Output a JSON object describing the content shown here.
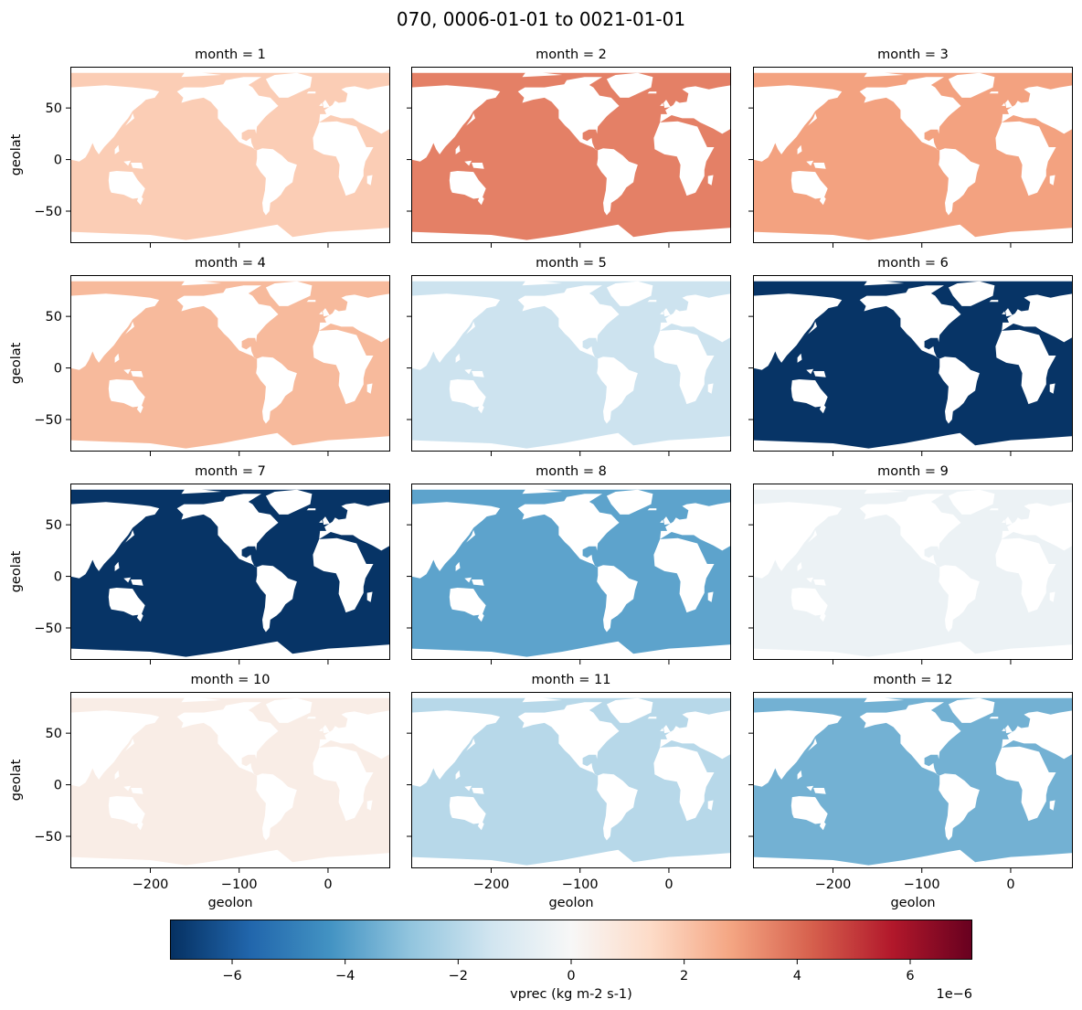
{
  "chart_data": {
    "type": "heatmap",
    "title": "070, 0006-01-01 to 0021-01-01",
    "xlabel": "geolon",
    "ylabel": "geolat",
    "xlim": [
      -290,
      70
    ],
    "ylim": [
      -81,
      90
    ],
    "xticks": [
      -200,
      -100,
      0
    ],
    "yticks": [
      50,
      0,
      -50
    ],
    "xtick_labels": [
      "−200",
      "−100",
      "0"
    ],
    "ytick_labels": [
      "50",
      "0",
      "−50"
    ],
    "panels": [
      {
        "title": "month = 1",
        "month": 1,
        "value": 1.8e-06
      },
      {
        "title": "month = 2",
        "month": 2,
        "value": 3.6e-06
      },
      {
        "title": "month = 3",
        "month": 3,
        "value": 2.9e-06
      },
      {
        "title": "month = 4",
        "month": 4,
        "value": 2.3e-06
      },
      {
        "title": "month = 5",
        "month": 5,
        "value": -1.5e-06
      },
      {
        "title": "month = 6",
        "month": 6,
        "value": -7e-06
      },
      {
        "title": "month = 7",
        "month": 7,
        "value": -7e-06
      },
      {
        "title": "month = 8",
        "month": 8,
        "value": -3.8e-06
      },
      {
        "title": "month = 9",
        "month": 9,
        "value": -4e-07
      },
      {
        "title": "month = 10",
        "month": 10,
        "value": 5e-07
      },
      {
        "title": "month = 11",
        "month": 11,
        "value": -2e-06
      },
      {
        "title": "month = 12",
        "month": 12,
        "value": -3.4e-06
      }
    ],
    "colorbar": {
      "label": "vprec (kg m-2 s-1)",
      "cmap": "RdBu_r",
      "vmin": -7.1e-06,
      "vmax": 7.1e-06,
      "ticks": [
        -6,
        -4,
        -2,
        0,
        2,
        4,
        6
      ],
      "tick_labels": [
        "−6",
        "−4",
        "−2",
        "0",
        "2",
        "4",
        "6"
      ],
      "offset_text": "1e−6"
    }
  },
  "colors": {
    "land": "#ffffff",
    "cmap_stops": [
      "#053061",
      "#2166ac",
      "#4393c3",
      "#92c5de",
      "#d1e5f0",
      "#f7f7f7",
      "#fddbc7",
      "#f4a582",
      "#d6604d",
      "#b2182b",
      "#67001f"
    ]
  }
}
